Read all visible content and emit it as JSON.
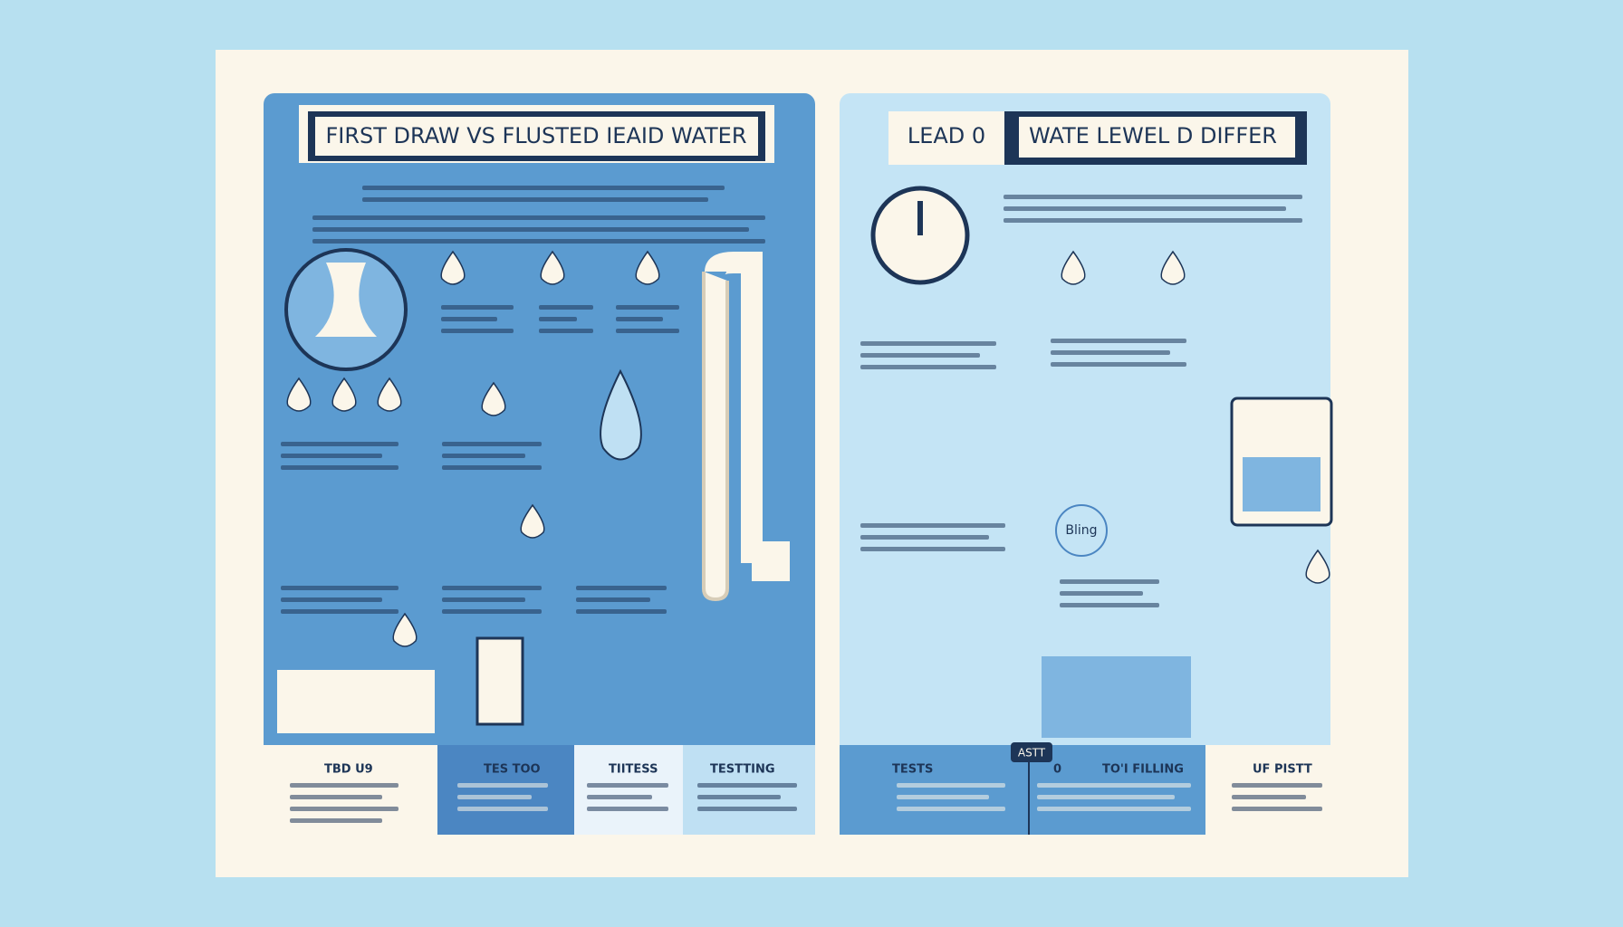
{
  "left_panel": {
    "title": "FIRST DRAW VS FLUSTED IEAID WATER",
    "footer": [
      "TBD U9",
      "TES TOO",
      "TIITESS",
      "TESTTING"
    ]
  },
  "right_panel": {
    "title_left": "LEAD 0",
    "title_right": "WATE LEWEL D DIFFER",
    "badge": "ASTT",
    "callout": "Bling",
    "footer": [
      "TESTS",
      "0",
      "TO'I FILLING",
      "UF PISTT"
    ]
  }
}
